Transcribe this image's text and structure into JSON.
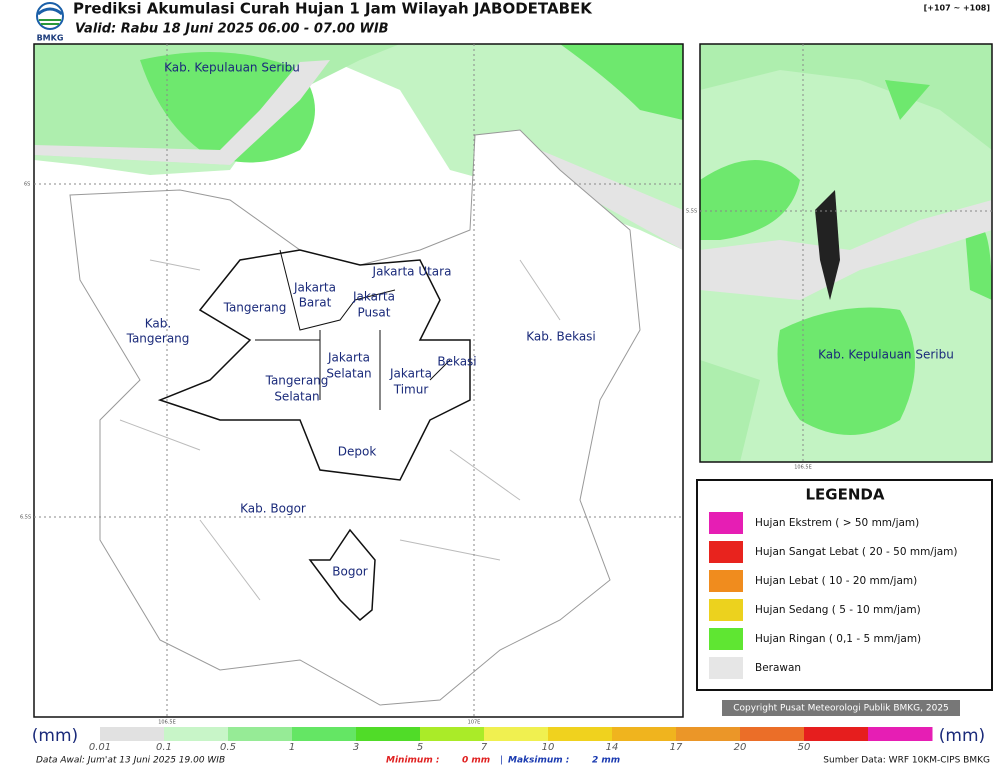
{
  "header": {
    "logo": "BMKG",
    "title": "Prediksi Akumulasi Curah Hujan 1 Jam Wilayah JABODETABEK",
    "valid": "Valid: Rabu 18 Juni 2025 06.00 - 07.00 WIB",
    "code": "[+107 ~ +108]"
  },
  "map": {
    "labels": [
      "Kab. Kepulauan Seribu",
      "Jakarta Utara",
      "Jakarta",
      "Barat",
      "Jakarta",
      "Pusat",
      "Tangerang",
      "Kab.",
      "Tangerang",
      "Jakarta",
      "Selatan",
      "Jakarta",
      "Timur",
      "Bekasi",
      "Kab. Bekasi",
      "Tangerang",
      "Selatan",
      "Depok",
      "Kab. Bogor",
      "Bogor"
    ],
    "ticks": [
      "6S",
      "6.5S",
      "106.5E",
      "107E"
    ]
  },
  "inset": {
    "label": "Kab. Kepulauan Seribu",
    "ticks": [
      "5.5S",
      "106.5E"
    ]
  },
  "legend": {
    "title": "LEGENDA",
    "items": [
      {
        "label": "Hujan Ekstrem ( > 50 mm/jam)",
        "color": "#e61eb4"
      },
      {
        "label": "Hujan Sangat Lebat ( 20 - 50 mm/jam)",
        "color": "#e8231e"
      },
      {
        "label": "Hujan Lebat ( 10 - 20 mm/jam)",
        "color": "#f08c1e"
      },
      {
        "label": "Hujan Sedang ( 5 - 10 mm/jam)",
        "color": "#ecd21e"
      },
      {
        "label": "Hujan Ringan ( 0,1 - 5 mm/jam)",
        "color": "#5fe632"
      },
      {
        "label": "Berawan",
        "color": "#e6e6e6"
      }
    ]
  },
  "copyright": "Copyright Pusat Meteorologi Publik BMKG, 2025",
  "colorbar": {
    "unit_left": "(mm)",
    "unit_right": "(mm)",
    "ticks": [
      "0.01",
      "0.1",
      "0.5",
      "1",
      "3",
      "5",
      "7",
      "10",
      "14",
      "17",
      "20",
      "50"
    ],
    "colors": [
      "#e1e1e1",
      "#c8f5c8",
      "#96eb96",
      "#64e664",
      "#50dc28",
      "#aaeb28",
      "#f0f050",
      "#f0d21e",
      "#f0b41e",
      "#eb9628",
      "#eb6e28",
      "#e61e1e",
      "#e61eb4"
    ]
  },
  "footer": {
    "data_awal": "Data Awal: Jum'at 13 Juni 2025 19.00 WIB",
    "min_label": "Minimum :",
    "min_value": "0 mm",
    "separator": "|",
    "max_label": "Maksimum :",
    "max_value": "2 mm",
    "source": "Sumber Data: WRF 10KM-CIPS BMKG"
  }
}
